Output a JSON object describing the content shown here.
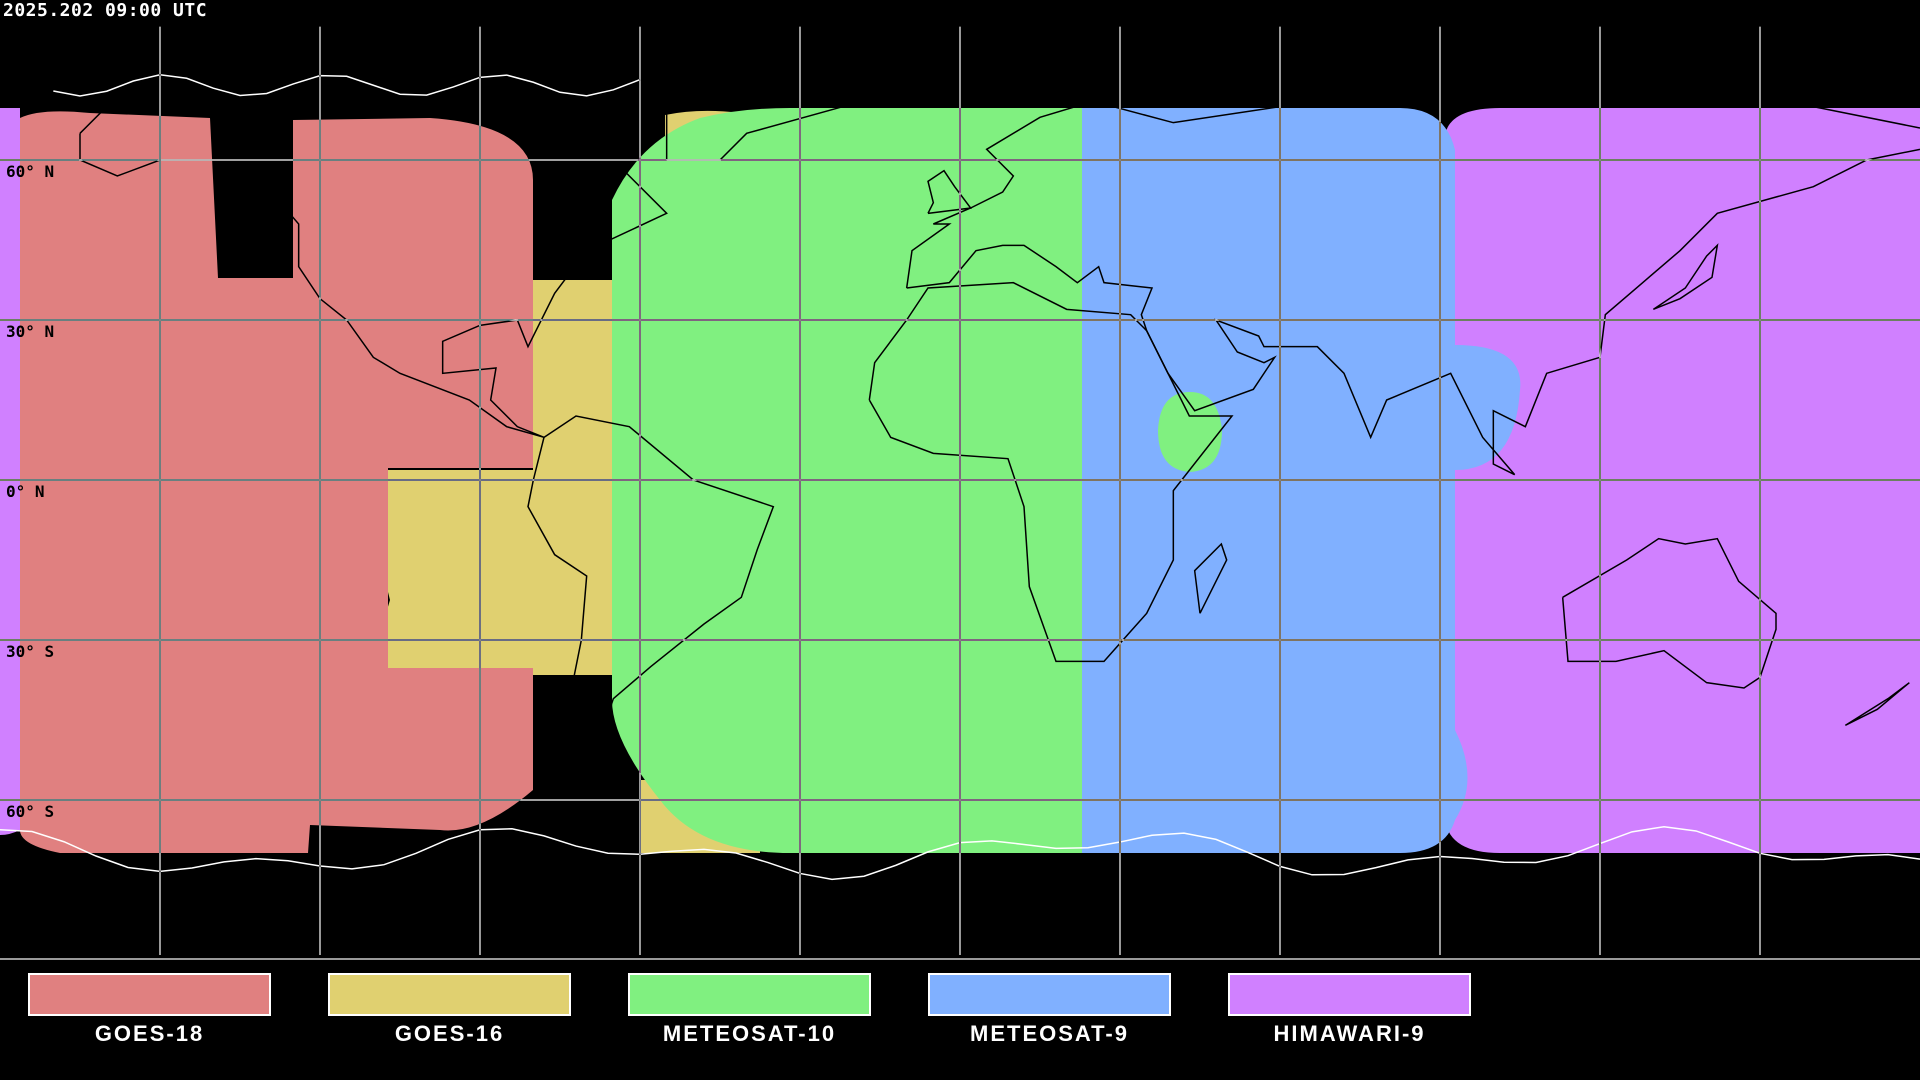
{
  "timestamp": "2025.202 09:00 UTC",
  "lat_labels": [
    "60° N",
    "30° N",
    "0° N",
    "30° S",
    "60° S"
  ],
  "legend": [
    {
      "label": "GOES-18",
      "color": "#e08080"
    },
    {
      "label": "GOES-16",
      "color": "#e0d070"
    },
    {
      "label": "METEOSAT-10",
      "color": "#80f080"
    },
    {
      "label": "METEOSAT-9",
      "color": "#80b0ff"
    },
    {
      "label": "HIMAWARI-9",
      "color": "#d080ff"
    }
  ],
  "map": {
    "projection": "equirectangular",
    "grid_spacing_deg": 30,
    "background": "#000000"
  }
}
